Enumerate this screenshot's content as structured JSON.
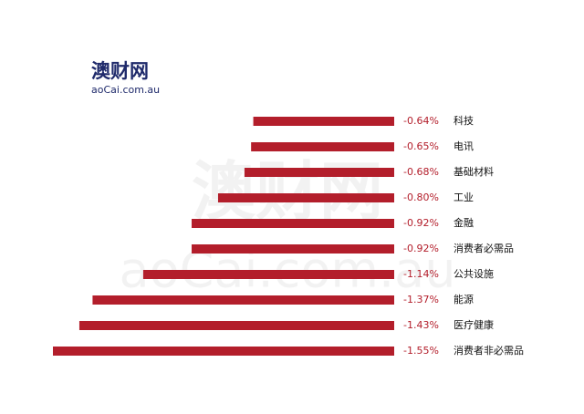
{
  "logo": {
    "name": "澳财网",
    "domain": "aoCai.com.au"
  },
  "chart_data": {
    "type": "bar",
    "orientation": "horizontal",
    "categories": [
      "科技",
      "电讯",
      "基础材料",
      "工业",
      "金融",
      "消费者必需品",
      "公共设施",
      "能源",
      "医疗健康",
      "消费者非必需品"
    ],
    "values": [
      -0.64,
      -0.65,
      -0.68,
      -0.8,
      -0.92,
      -0.92,
      -1.14,
      -1.37,
      -1.43,
      -1.55
    ],
    "value_labels": [
      "-0.64%",
      "-0.65%",
      "-0.68%",
      "-0.80%",
      "-0.92%",
      "-0.92%",
      "-1.14%",
      "-1.37%",
      "-1.43%",
      "-1.55%"
    ],
    "color": "#b31e2b"
  }
}
